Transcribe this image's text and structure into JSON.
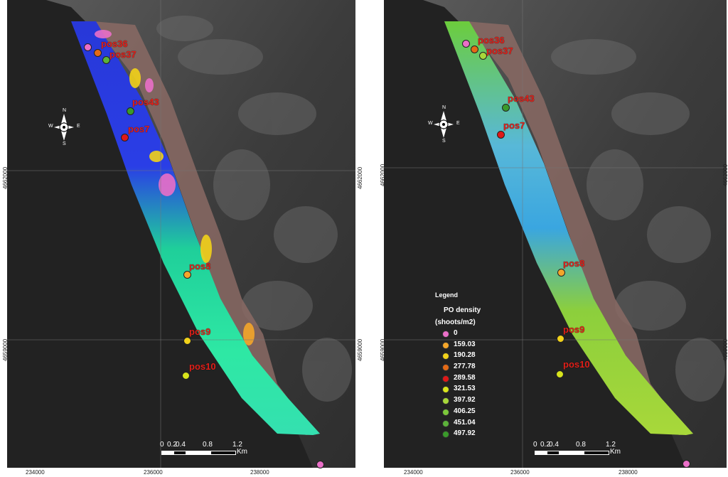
{
  "colors": {
    "pink": "#ea6fc8",
    "orange_light": "#f4a62a",
    "yellow": "#f2d21a",
    "orange": "#e46a16",
    "red": "#e01818",
    "yellow_green": "#d8e41c",
    "green_light": "#a8d83a",
    "green": "#7cc83a",
    "green_mid": "#5cb23a",
    "green_dark": "#3a9a2a",
    "label_red": "#e0201a"
  },
  "panels": [
    {
      "id": "left",
      "sites": [
        {
          "name": "pos36",
          "color": "#e46a16"
        },
        {
          "name": "pos37",
          "color": "#5cb23a"
        },
        {
          "name": "pos43",
          "color": "#3a9a2a"
        },
        {
          "name": "pos7",
          "color": "#e01818"
        },
        {
          "name": "pos8",
          "color": "#f4a62a"
        },
        {
          "name": "pos9",
          "color": "#f2d21a"
        },
        {
          "name": "pos10",
          "color": "#d8e41c"
        }
      ],
      "extra_dots": [
        {
          "color": "#ea6fc8"
        },
        {
          "color": "#ea6fc8"
        }
      ],
      "x_ticks": [
        "234000",
        "236000",
        "238000"
      ],
      "y_ticks": [
        "4662000",
        "4659000"
      ],
      "compass": {
        "n": "N",
        "s": "S",
        "e": "E",
        "w": "W"
      },
      "scale": {
        "labels": [
          "0",
          "0.2",
          "0.4",
          "0.8",
          "1.2"
        ],
        "unit": "Km"
      }
    },
    {
      "id": "right",
      "sites": [
        {
          "name": "pos36",
          "color": "#e46a16"
        },
        {
          "name": "pos37",
          "color": "#a8d83a"
        },
        {
          "name": "pos43",
          "color": "#3a9a2a"
        },
        {
          "name": "pos7",
          "color": "#e01818"
        },
        {
          "name": "pos8",
          "color": "#f4a62a"
        },
        {
          "name": "pos9",
          "color": "#f2d21a"
        },
        {
          "name": "pos10",
          "color": "#d8e41c"
        }
      ],
      "extra_dots": [
        {
          "color": "#ea6fc8"
        },
        {
          "color": "#ea6fc8"
        }
      ],
      "x_ticks": [
        "234000",
        "236000",
        "238000"
      ],
      "y_ticks": [
        "4662000",
        "4659000"
      ],
      "compass": {
        "n": "N",
        "s": "S",
        "e": "E",
        "w": "W"
      },
      "scale": {
        "labels": [
          "0",
          "0.2",
          "0.4",
          "0.8",
          "1.2"
        ],
        "unit": "Km"
      }
    }
  ],
  "legend": {
    "title": "Legend",
    "subtitle_1": "PO density",
    "subtitle_2": "(shoots/m2)",
    "items": [
      {
        "label": "0",
        "color": "#ea6fc8"
      },
      {
        "label": "159.03",
        "color": "#f4a62a"
      },
      {
        "label": "190.28",
        "color": "#f2d21a"
      },
      {
        "label": "277.78",
        "color": "#e46a16"
      },
      {
        "label": "289.58",
        "color": "#e01818"
      },
      {
        "label": "321.53",
        "color": "#d8e41c"
      },
      {
        "label": "397.92",
        "color": "#a8d83a"
      },
      {
        "label": "406.25",
        "color": "#7cc83a"
      },
      {
        "label": "451.04",
        "color": "#5cb23a"
      },
      {
        "label": "497.92",
        "color": "#3a9a2a"
      }
    ]
  }
}
